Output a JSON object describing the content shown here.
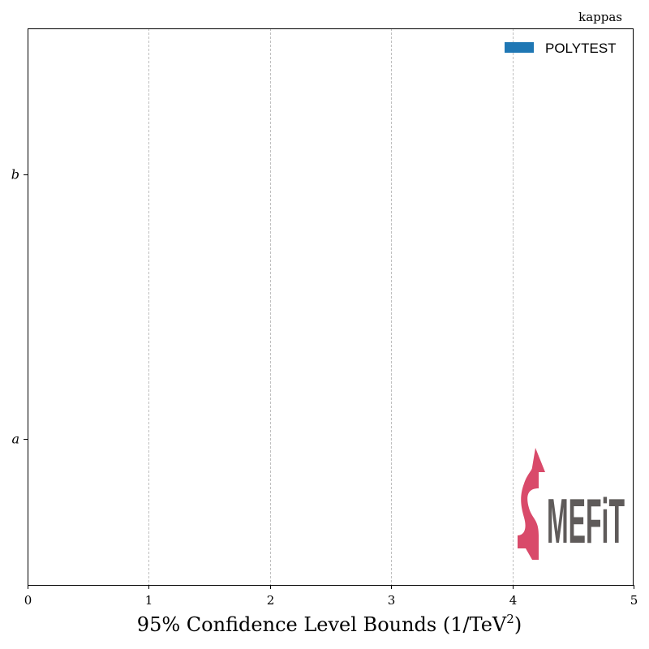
{
  "chart_data": {
    "type": "bar",
    "orientation": "horizontal",
    "corner_label": "kappas",
    "categories": [
      "a",
      "b"
    ],
    "series": [
      {
        "name": "POLYTEST",
        "values": [
          null,
          null
        ],
        "color": "#1f77b4"
      }
    ],
    "xlabel": "95% Confidence Level Bounds (1/TeV",
    "xlabel_sup": "2",
    "xlabel_tail": ")",
    "ylabel": "",
    "xlim": [
      0,
      5
    ],
    "xticks": [
      0,
      1,
      2,
      3,
      4,
      5
    ],
    "grid": {
      "x": true,
      "style": "dashed"
    },
    "legend_position": "top-right"
  },
  "logo": {
    "text": "MEFiT",
    "letter": "S",
    "colors": {
      "mark": "#d94a6a",
      "text": "#5f5b5a"
    }
  }
}
